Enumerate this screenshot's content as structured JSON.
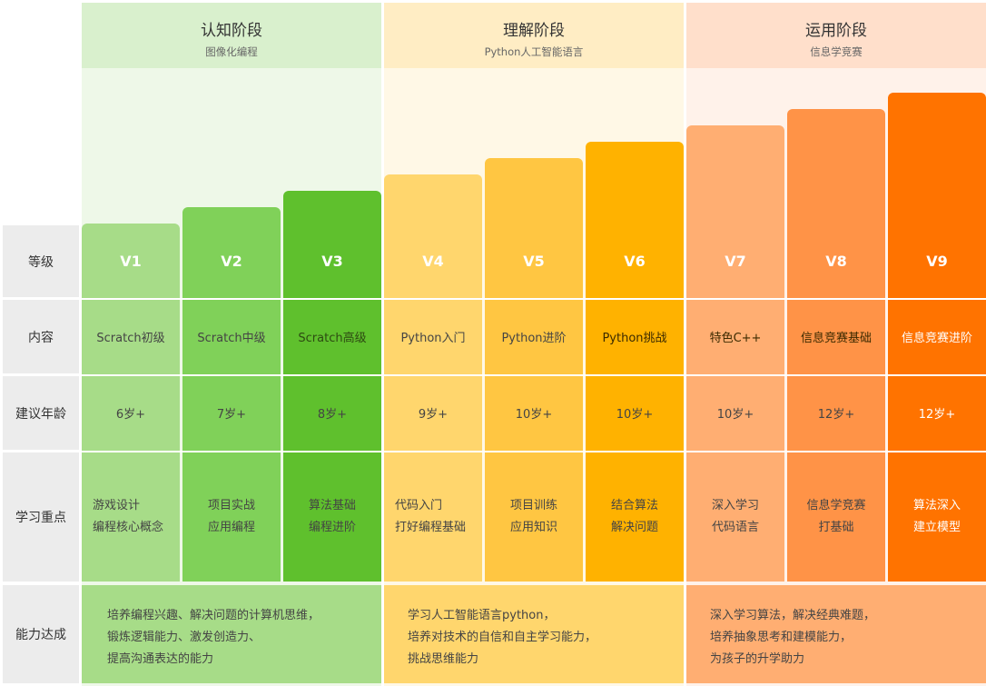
{
  "stages": [
    {
      "title": "认知阶段",
      "subtitle": "图像化编程",
      "text_lines": [
        "培养编程兴趣、解决问题的计算机思维，",
        "锻炼逻辑能力、激发创造力、",
        "提高沟通表达的能力"
      ]
    },
    {
      "title": "理解阶段",
      "subtitle": "Python人工智能语言",
      "text_lines": [
        "学习人工智能语言python，",
        "培养对技术的自信和自主学习能力，",
        "挑战思维能力"
      ]
    },
    {
      "title": "运用阶段",
      "subtitle": "信息学竞赛",
      "text_lines": [
        "深入学习算法，解决经典难题，",
        "培养抽象思考和建模能力，",
        "为孩子的升学助力"
      ]
    }
  ],
  "row_labels": {
    "level": "等级",
    "content": "内容",
    "age": "建议年龄",
    "focus": "学习重点",
    "ability": "能力达成"
  },
  "levels": [
    {
      "name": "V1",
      "content": "Scratch初级",
      "age": "6岁+",
      "focus": [
        "游戏设计",
        "编程核心概念"
      ],
      "color": "#a7dc88"
    },
    {
      "name": "V2",
      "content": "Scratch中级",
      "age": "7岁+",
      "focus": [
        "项目实战",
        "应用编程"
      ],
      "color": "#80d159"
    },
    {
      "name": "V3",
      "content": "Scratch高级",
      "age": "8岁+",
      "focus": [
        "算法基础",
        "编程进阶"
      ],
      "color": "#5fc02d"
    },
    {
      "name": "V4",
      "content": "Python入门",
      "age": "9岁+",
      "focus": [
        "代码入门",
        "打好编程基础"
      ],
      "color": "#ffd66d"
    },
    {
      "name": "V5",
      "content": "Python进阶",
      "age": "10岁+",
      "focus": [
        "项目训练",
        "应用知识"
      ],
      "color": "#ffc642"
    },
    {
      "name": "V6",
      "content": "Python挑战",
      "age": "10岁+",
      "focus": [
        "结合算法",
        "解决问题"
      ],
      "color": "#ffb200"
    },
    {
      "name": "V7",
      "content": "特色C++",
      "age": "10岁+",
      "focus": [
        "深入学习",
        "代码语言"
      ],
      "color": "#ffae72"
    },
    {
      "name": "V8",
      "content": "信息竞赛基础",
      "age": "12岁+",
      "focus": [
        "信息学竞赛",
        "打基础"
      ],
      "color": "#ff9347"
    },
    {
      "name": "V9",
      "content": "信息竞赛进阶",
      "age": "12岁+",
      "focus": [
        "算法深入",
        "建立模型"
      ],
      "color": "#ff7300"
    }
  ],
  "colors": {
    "stage_head": [
      "#d9f0cd",
      "#ffedc4",
      "#ffdfcb"
    ],
    "stage_bg": [
      "#eef8e8",
      "#fff8e6",
      "#fff2ea"
    ],
    "ability": [
      "#a7dc88",
      "#ffd66d",
      "#ffae72"
    ]
  }
}
